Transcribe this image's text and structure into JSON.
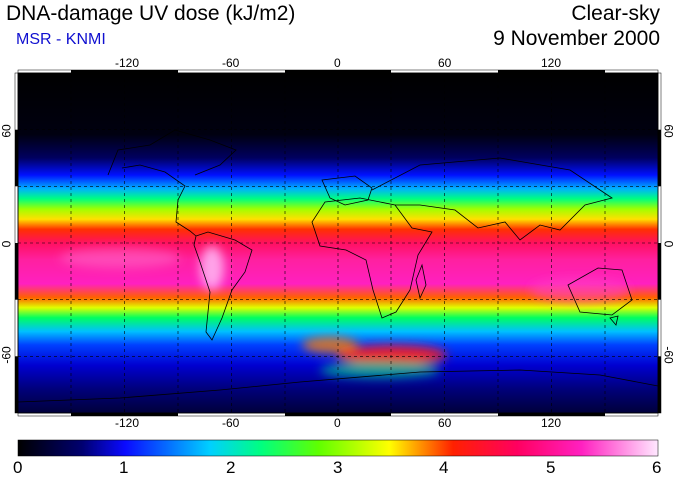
{
  "header": {
    "title": "DNA-damage UV dose (kJ/m2)",
    "source": "MSR - KNMI",
    "sky_condition": "Clear-sky",
    "date": "9 November 2000"
  },
  "map": {
    "projection": "plate-carree",
    "lon_ticks": [
      "-120",
      "-60",
      "0",
      "60",
      "120"
    ],
    "lat_ticks": [
      "60",
      "0",
      "-60"
    ],
    "lon_range": [
      -180,
      180
    ],
    "lat_range": [
      -90,
      90
    ],
    "grid": "dashed 30-degree graticule"
  },
  "colorbar": {
    "min": 0,
    "max": 6,
    "tick_labels": [
      "0",
      "1",
      "2",
      "3",
      "4",
      "5",
      "6"
    ],
    "colors": [
      "#000000",
      "#0a0aff",
      "#00e8ff",
      "#00ff00",
      "#ffff00",
      "#ff2000",
      "#ff00a0",
      "#ff88e0",
      "#ffffff"
    ]
  }
}
